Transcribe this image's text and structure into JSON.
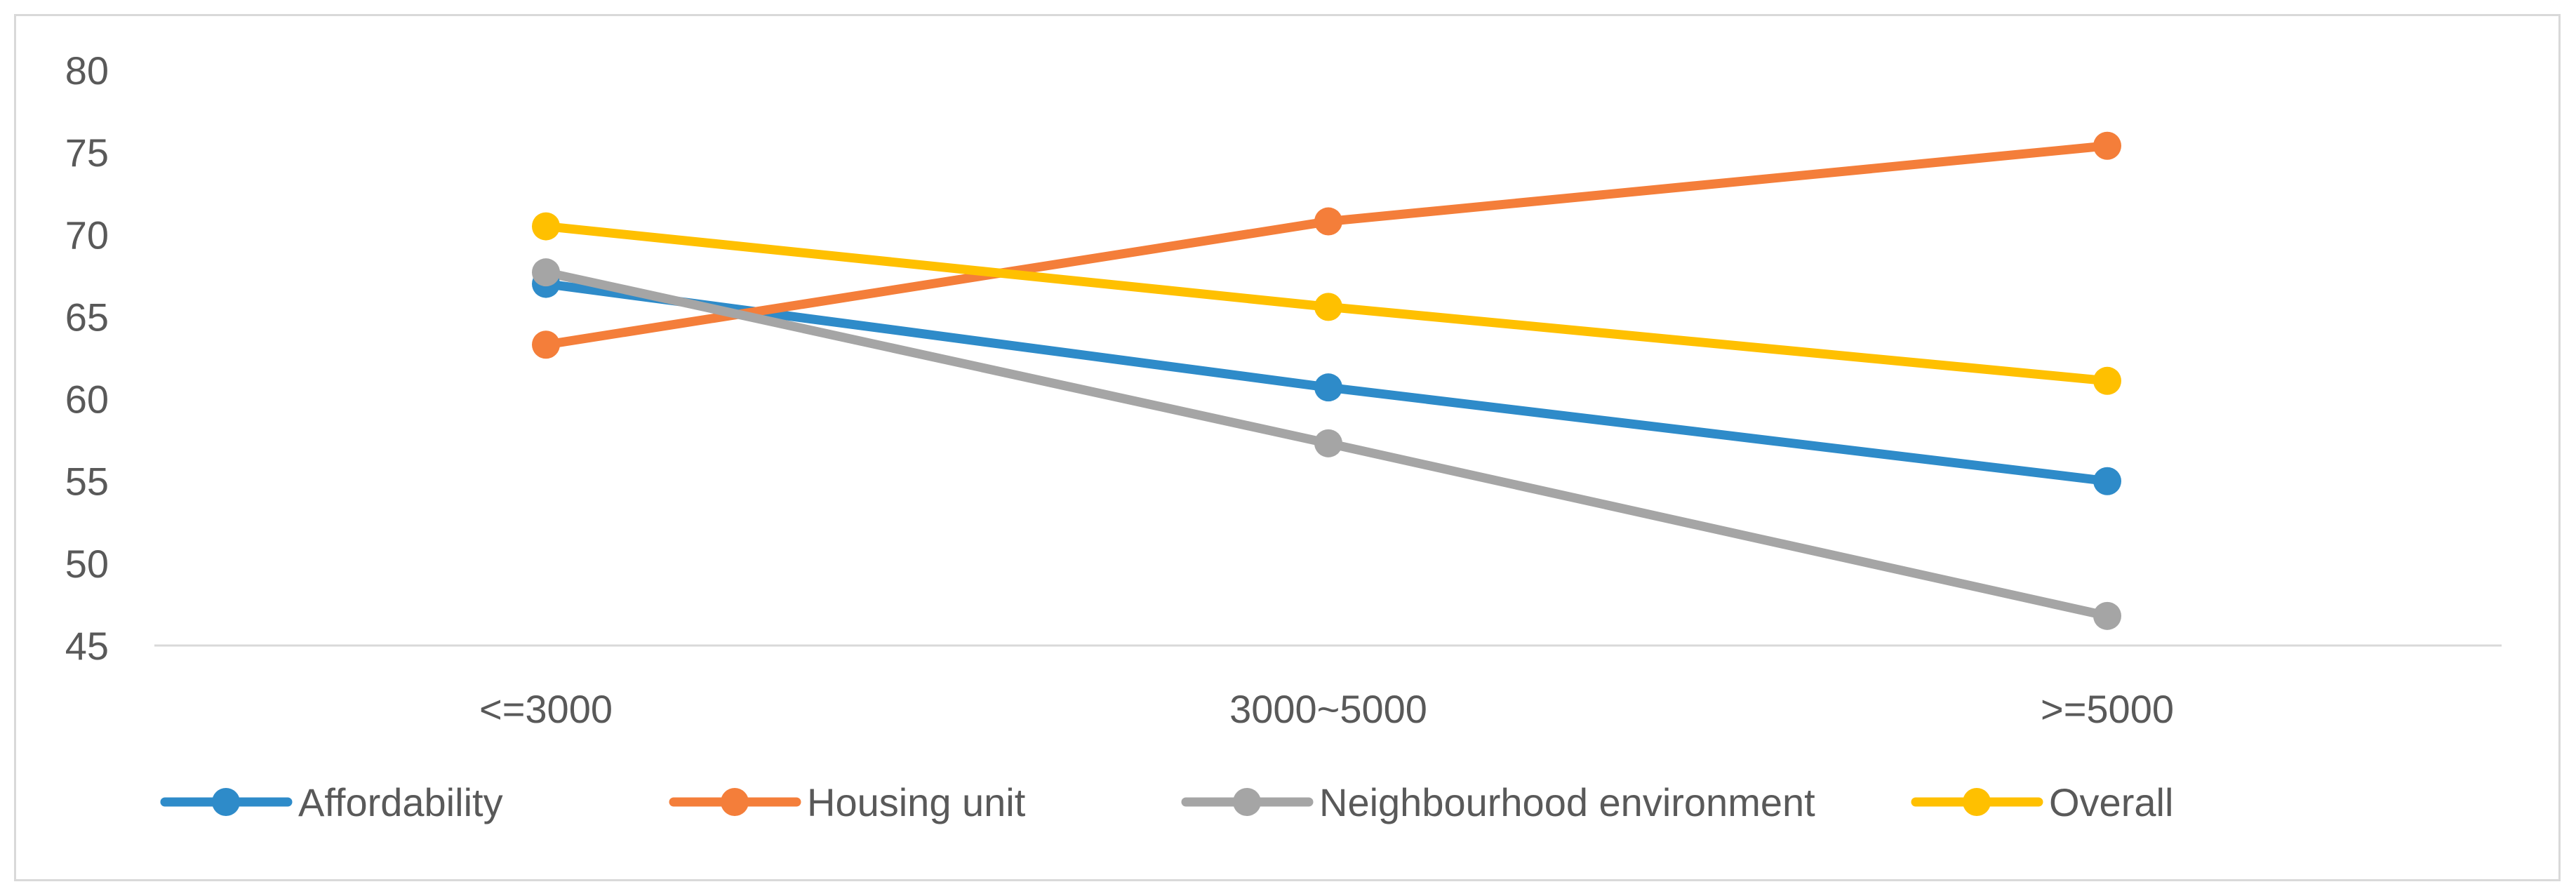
{
  "chart_data": {
    "type": "line",
    "title": "",
    "xlabel": "",
    "ylabel": "",
    "categories": [
      "<=3000",
      "3000~5000",
      ">=5000"
    ],
    "ylim": [
      45,
      80
    ],
    "yticks": [
      45,
      50,
      55,
      60,
      65,
      70,
      75,
      80
    ],
    "grid": false,
    "legend_position": "bottom",
    "series": [
      {
        "name": "Affordability",
        "values": [
          67.0,
          60.7,
          55.0
        ],
        "color": "#2e8bc9"
      },
      {
        "name": "Housing unit",
        "values": [
          63.3,
          70.8,
          75.4
        ],
        "color": "#f47e3a"
      },
      {
        "name": "Neighbourhood environment",
        "values": [
          67.7,
          57.3,
          46.8
        ],
        "color": "#a5a5a5"
      },
      {
        "name": "Overall",
        "values": [
          70.5,
          65.6,
          61.1
        ],
        "color": "#ffc000"
      }
    ]
  }
}
